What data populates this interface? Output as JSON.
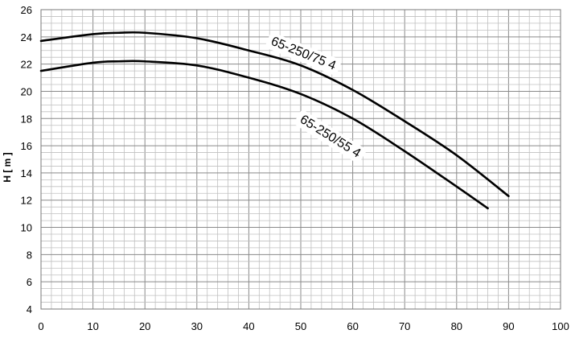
{
  "chart_data": {
    "type": "line",
    "title": "",
    "xlabel": "",
    "ylabel": "H [ m ]",
    "xlim": [
      0,
      100
    ],
    "ylim": [
      4,
      26
    ],
    "x_ticks": [
      "0",
      "10",
      "20",
      "30",
      "40",
      "50",
      "60",
      "70",
      "80",
      "90",
      "100"
    ],
    "y_ticks": [
      "4",
      "6",
      "8",
      "10",
      "12",
      "14",
      "16",
      "18",
      "20",
      "22",
      "24",
      "26"
    ],
    "grid": {
      "major": true,
      "minor": true
    },
    "legend": "none",
    "series": [
      {
        "name": "65-250/75 4",
        "x": [
          0,
          10,
          15,
          20,
          30,
          40,
          50,
          60,
          70,
          80,
          90
        ],
        "y": [
          23.7,
          24.2,
          24.3,
          24.3,
          23.9,
          23.0,
          21.9,
          20.1,
          17.8,
          15.3,
          12.3
        ]
      },
      {
        "name": "65-250/55 4",
        "x": [
          0,
          10,
          15,
          20,
          30,
          40,
          50,
          60,
          70,
          80,
          86
        ],
        "y": [
          21.5,
          22.1,
          22.2,
          22.2,
          21.9,
          21.0,
          19.8,
          18.0,
          15.6,
          13.0,
          11.4
        ]
      }
    ],
    "colors": {
      "line": "#000000",
      "major_grid": "#8a8a8a",
      "minor_grid": "#c0c0c0"
    }
  }
}
